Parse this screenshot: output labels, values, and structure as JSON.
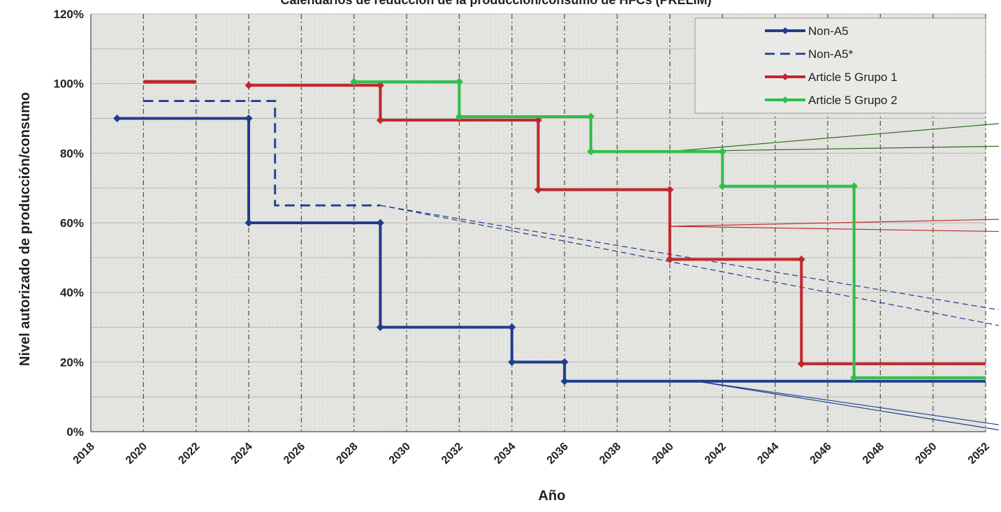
{
  "chart_data": {
    "type": "line",
    "title": "Calendarios de reducción de la producción/consumo de HFCs (PRELIM)",
    "xlabel": "Año",
    "ylabel": "Nivel autorizado de producción/consumo",
    "xlim": [
      2018,
      2052
    ],
    "ylim": [
      0,
      120
    ],
    "x_ticks": [
      "2018",
      "2020",
      "2022",
      "2024",
      "2026",
      "2028",
      "2030",
      "2032",
      "2034",
      "2036",
      "2038",
      "2040",
      "2042",
      "2044",
      "2046",
      "2048",
      "2050",
      "2052"
    ],
    "y_ticks": [
      "0%",
      "20%",
      "40%",
      "60%",
      "80%",
      "100%",
      "120%"
    ],
    "grid": true,
    "legend_position": "top-right",
    "series": [
      {
        "name": "Non-A5",
        "color": "#1f3d8f",
        "style": "solid",
        "step": true,
        "points": [
          [
            2019,
            90
          ],
          [
            2024,
            90
          ],
          [
            2024,
            60
          ],
          [
            2029,
            60
          ],
          [
            2029,
            30
          ],
          [
            2034,
            30
          ],
          [
            2034,
            20
          ],
          [
            2036,
            20
          ],
          [
            2036,
            14.5
          ],
          [
            2052,
            14.5
          ]
        ],
        "markers": [
          [
            2019,
            90
          ],
          [
            2024,
            90
          ],
          [
            2024,
            60
          ],
          [
            2029,
            60
          ],
          [
            2029,
            30
          ],
          [
            2034,
            30
          ],
          [
            2034,
            20
          ],
          [
            2036,
            20
          ],
          [
            2036,
            14.5
          ]
        ]
      },
      {
        "name": "Non-A5*",
        "color": "#1f3d8f",
        "style": "dashed",
        "step": true,
        "points": [
          [
            2020,
            95
          ],
          [
            2025,
            95
          ],
          [
            2025,
            65
          ],
          [
            2029,
            65
          ]
        ],
        "markers": []
      },
      {
        "name": "Article 5 Grupo 1",
        "color": "#c0282d",
        "style": "solid",
        "step": true,
        "segments": [
          [
            [
              2020,
              100.5
            ],
            [
              2022,
              100.5
            ]
          ]
        ],
        "points": [
          [
            2024,
            99.5
          ],
          [
            2029,
            99.5
          ],
          [
            2029,
            89.5
          ],
          [
            2035,
            89.5
          ],
          [
            2035,
            69.5
          ],
          [
            2040,
            69.5
          ],
          [
            2040,
            49.5
          ],
          [
            2045,
            49.5
          ],
          [
            2045,
            19.5
          ],
          [
            2052,
            19.5
          ]
        ],
        "markers": [
          [
            2024,
            99.5
          ],
          [
            2029,
            99.5
          ],
          [
            2029,
            89.5
          ],
          [
            2035,
            89.5
          ],
          [
            2035,
            69.5
          ],
          [
            2040,
            69.5
          ],
          [
            2040,
            49.5
          ],
          [
            2045,
            49.5
          ],
          [
            2045,
            19.5
          ]
        ]
      },
      {
        "name": "Article 5 Grupo 2",
        "color": "#2fbf4a",
        "style": "solid",
        "step": true,
        "points": [
          [
            2028,
            100.5
          ],
          [
            2032,
            100.5
          ],
          [
            2032,
            90.5
          ],
          [
            2037,
            90.5
          ],
          [
            2037,
            80.5
          ],
          [
            2042,
            80.5
          ],
          [
            2042,
            70.5
          ],
          [
            2047,
            70.5
          ],
          [
            2047,
            15.5
          ],
          [
            2052,
            15.5
          ]
        ],
        "markers": [
          [
            2028,
            100.5
          ],
          [
            2032,
            100.5
          ],
          [
            2032,
            90.5
          ],
          [
            2037,
            90.5
          ],
          [
            2037,
            80.5
          ],
          [
            2042,
            80.5
          ],
          [
            2042,
            70.5
          ],
          [
            2047,
            70.5
          ],
          [
            2047,
            15.5
          ]
        ]
      }
    ],
    "callout_lines": [
      {
        "color": "#2e6b1f",
        "style": "solid",
        "from": [
          2040,
          80.5
        ],
        "to": [
          2052.5,
          88.5
        ]
      },
      {
        "color": "#2e6b1f",
        "style": "solid",
        "from": [
          2040,
          80.5
        ],
        "to": [
          2052.5,
          82
        ]
      },
      {
        "color": "#c0282d",
        "style": "solid",
        "from": [
          2040,
          59
        ],
        "to": [
          2052.5,
          61
        ]
      },
      {
        "color": "#c0282d",
        "style": "solid",
        "from": [
          2040,
          59
        ],
        "to": [
          2052.5,
          57.5
        ]
      },
      {
        "color": "#1f3d8f",
        "style": "dashed",
        "from": [
          2029,
          65
        ],
        "to": [
          2052.5,
          35
        ]
      },
      {
        "color": "#1f3d8f",
        "style": "dashed",
        "from": [
          2029,
          65
        ],
        "to": [
          2052.5,
          30.5
        ]
      },
      {
        "color": "#1f3d8f",
        "style": "solid",
        "from": [
          2041,
          14.5
        ],
        "to": [
          2052.5,
          2
        ]
      },
      {
        "color": "#1f3d8f",
        "style": "solid",
        "from": [
          2041,
          14.5
        ],
        "to": [
          2052.5,
          0.5
        ]
      }
    ],
    "colors": {
      "plot_bg": "#e6e6e3",
      "grid": "#5a5a4a",
      "axis": "#666666",
      "text": "#222222"
    }
  }
}
